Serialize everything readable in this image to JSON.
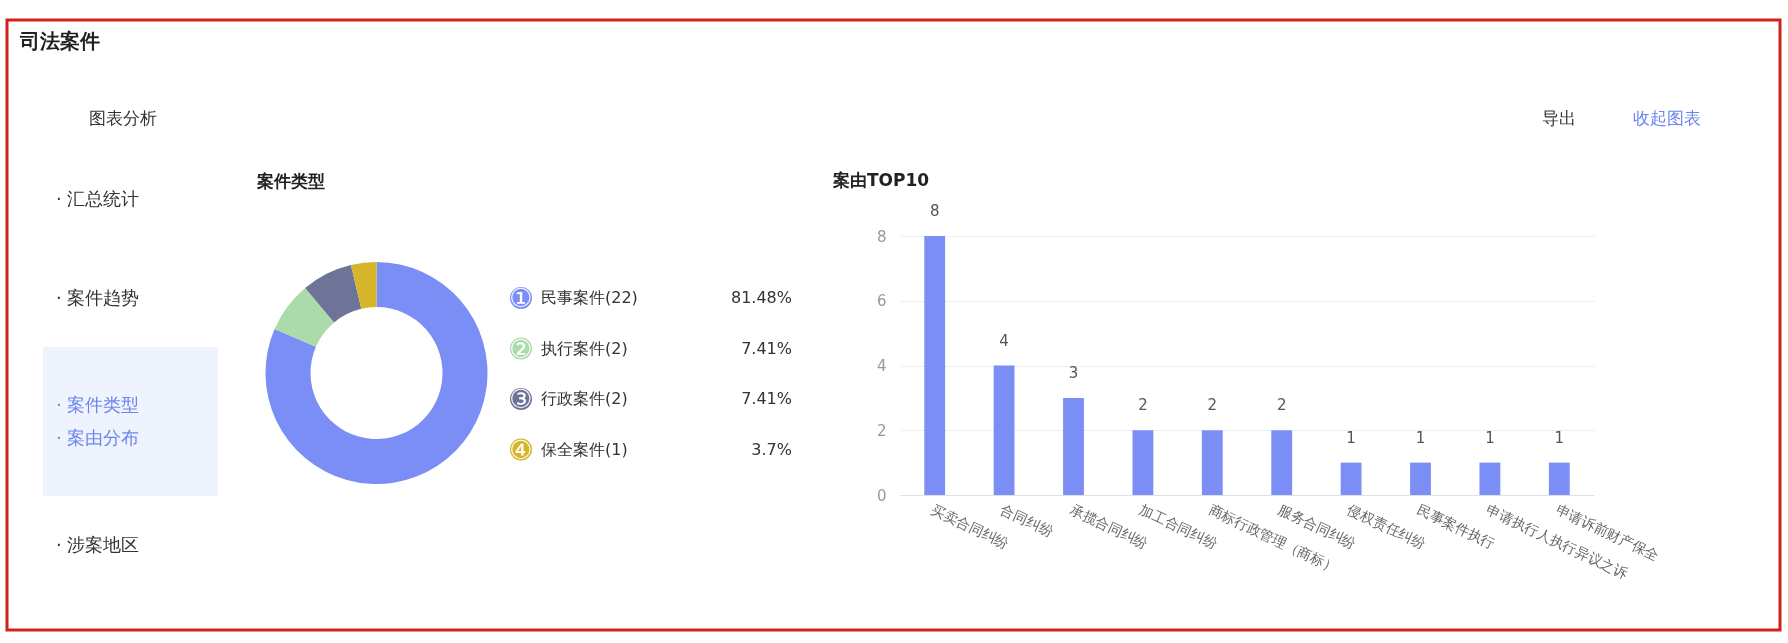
{
  "chart_data": [
    {
      "type": "other",
      "title": "司法案件",
      "subtitle": "图表分析",
      "annotations": [
        "导出",
        "收起图表",
        "· 汇总统计",
        "· 案件趋势",
        "· 案件类型",
        "· 案由分布",
        "· 涉案地区"
      ]
    },
    {
      "type": "donut",
      "title": "案件类型",
      "categories": [
        "民事案件(22)",
        "执行案件(2)",
        "行政案件(2)",
        "保全案件(1)"
      ],
      "values": [
        81.48,
        7.41,
        7.41,
        3.7
      ],
      "colors": [
        "#7b8ef6",
        "#acdbab",
        "#6e7498",
        "#d6b52a"
      ],
      "value_labels": [
        "81.48%",
        "7.41%",
        "7.41%",
        "3.7%"
      ],
      "annotations": [
        "①",
        "②",
        "③",
        "④"
      ],
      "legend": "right"
    },
    {
      "type": "bar",
      "title": "案由TOP10",
      "categories": [
        "买卖合同纠纷",
        "合同纠纷",
        "承揽合同纠纷",
        "加工合同纠纷",
        "商标行政管理（商标）",
        "服务合同纠纷",
        "侵权责任纠纷",
        "民事案件执行",
        "申请执行人执行异议之诉",
        "申请诉前财产保全"
      ],
      "values": [
        8,
        4,
        3,
        2,
        2,
        2,
        1,
        1,
        1,
        1
      ],
      "color": "#7b8ef6",
      "ylim": [
        0,
        8
      ],
      "yticks": [
        0,
        2,
        4,
        6,
        8
      ],
      "grid": "y",
      "data_labels": true
    }
  ]
}
